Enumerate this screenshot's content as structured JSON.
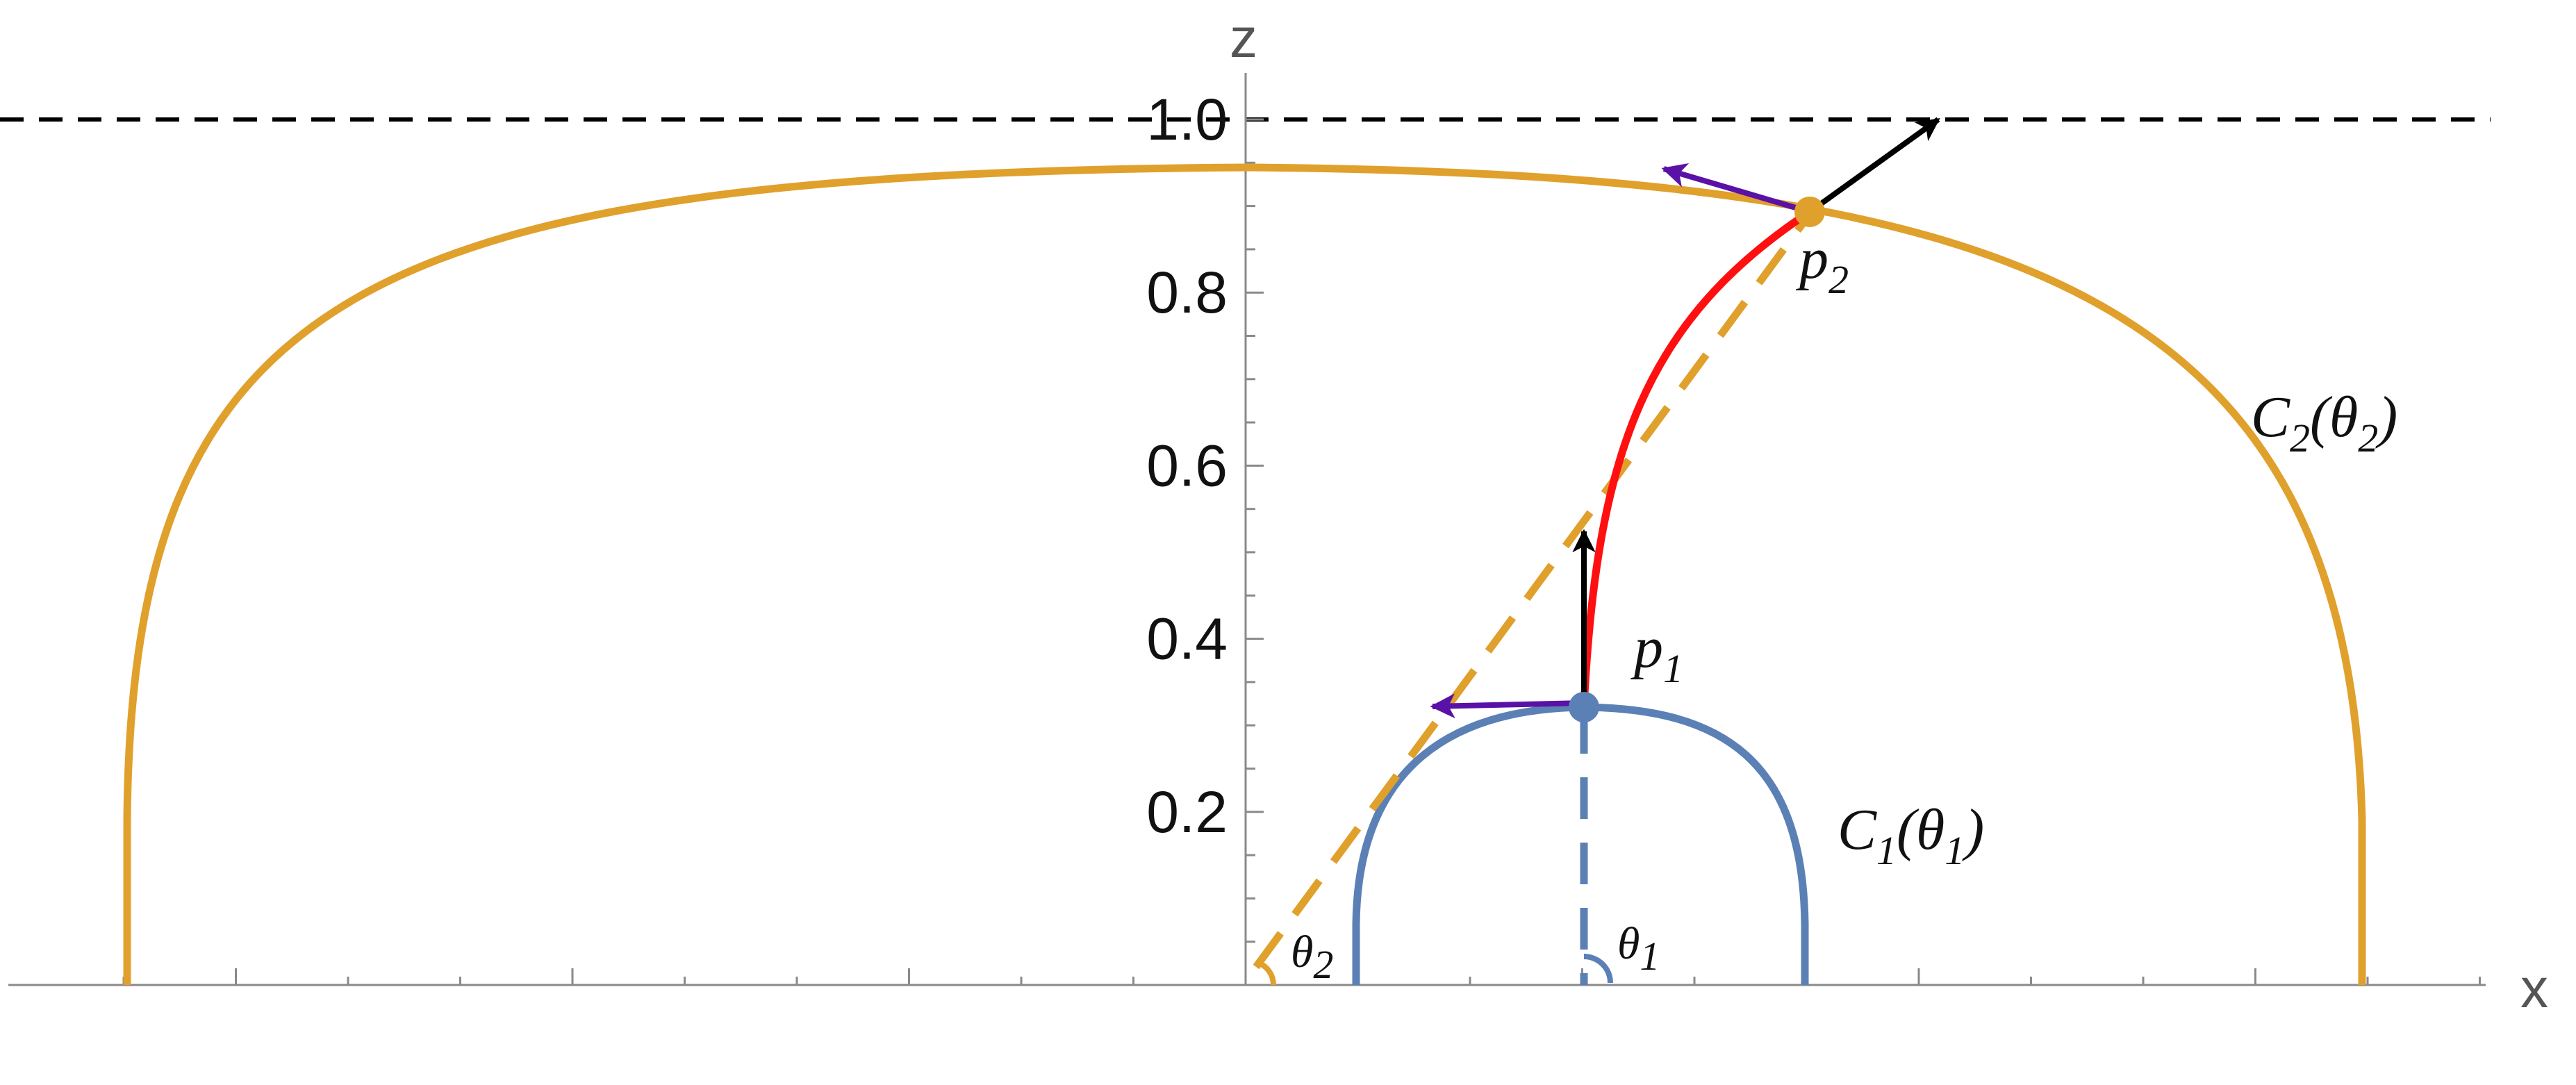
{
  "chart_data": {
    "type": "diagram",
    "axes": {
      "x_title": "x",
      "z_title": "z",
      "z_ticks": [
        "0.2",
        "0.4",
        "0.6",
        "0.8",
        "1.0"
      ],
      "z_tick_values": [
        0.2,
        0.4,
        0.6,
        0.8,
        1.0
      ],
      "z_range": [
        0,
        1
      ],
      "horizon_line_z": 1.0,
      "horizon_style": "dashed black"
    },
    "curves": {
      "c1": {
        "label_main": "C",
        "label_sub": "1",
        "label_arg": "θ",
        "label_arg_sub": "1",
        "color": "#5B80B5"
      },
      "c2": {
        "label_main": "C",
        "label_sub": "2",
        "label_arg": "θ",
        "label_arg_sub": "2",
        "color": "#E0A02C"
      },
      "geodesic": {
        "color": "#FF1010"
      }
    },
    "points": {
      "p1": {
        "letter": "p",
        "sub": "1",
        "color": "#5B80B5"
      },
      "p2": {
        "letter": "p",
        "sub": "2",
        "color": "#E0A02C"
      }
    },
    "angles": {
      "theta1": {
        "letter": "θ",
        "sub": "1"
      },
      "theta2": {
        "letter": "θ",
        "sub": "2"
      }
    },
    "arrow_colors": {
      "normal": "#000000",
      "tangent": "#5A12A6"
    }
  }
}
